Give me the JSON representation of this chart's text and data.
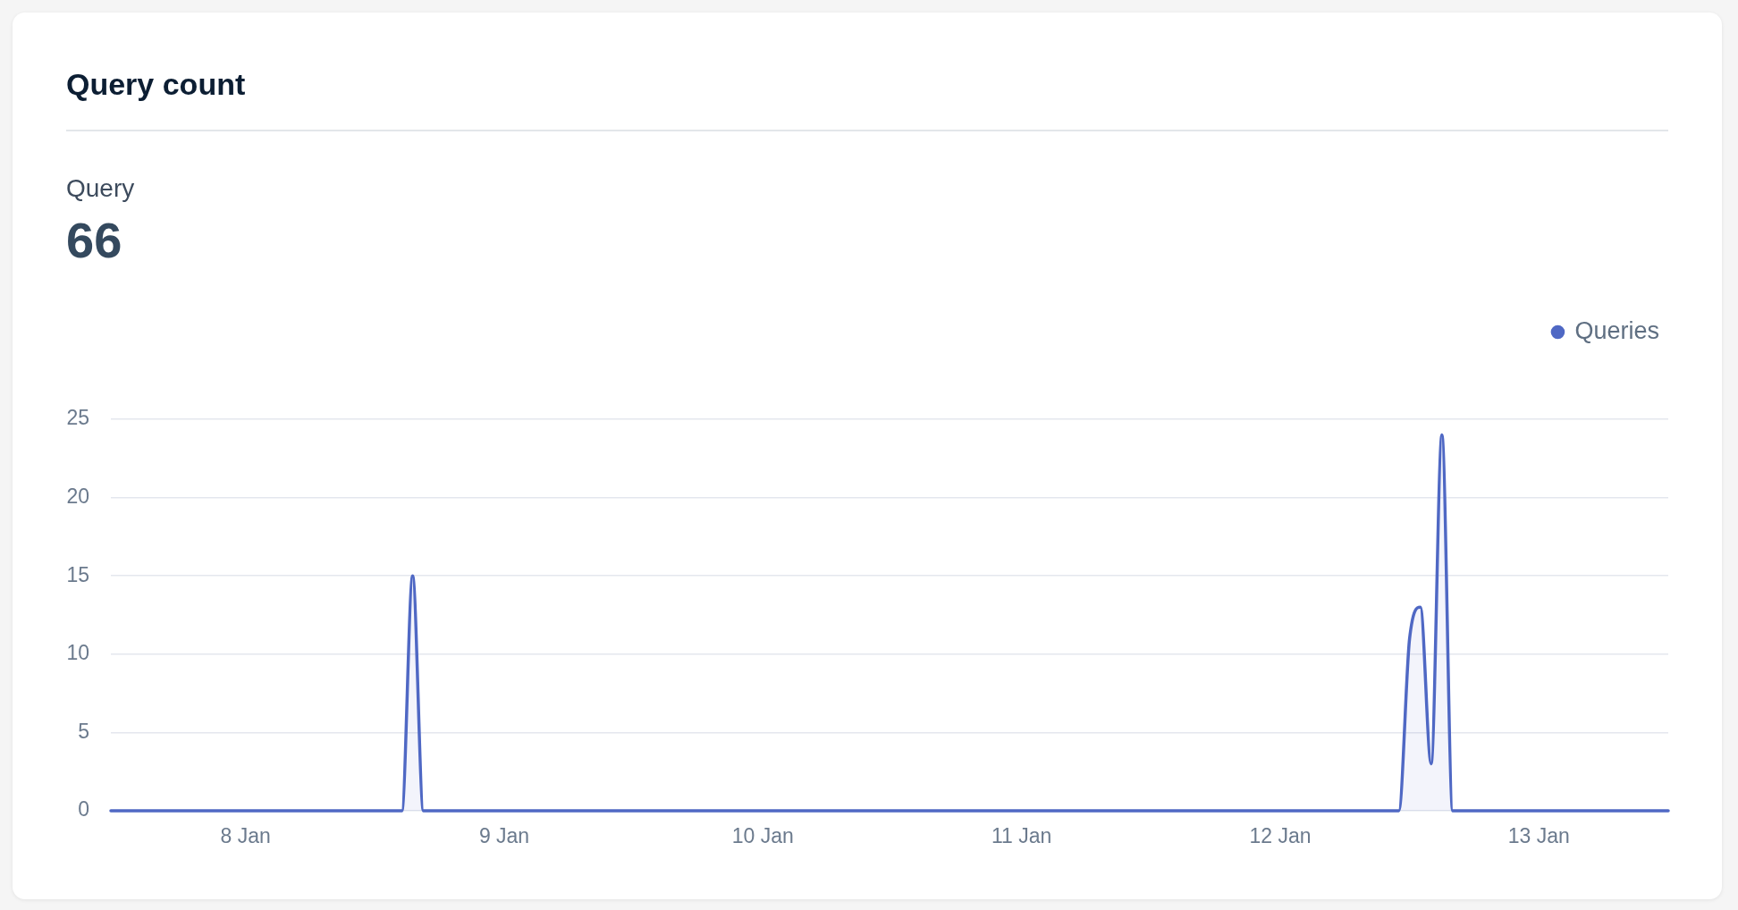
{
  "chart_data": {
    "type": "area",
    "title": "Query count",
    "subtitle": "Query",
    "annotations": [
      "66"
    ],
    "x": [
      "--01-07T11:30",
      "--01-08T14:30",
      "--01-08T15:30",
      "--01-08T16:30",
      "--01-12T11:00",
      "--01-12T12:00",
      "--01-12T13:00",
      "--01-12T14:00",
      "--01-12T15:00",
      "--01-12T16:00",
      "--01-13T12:00"
    ],
    "series": [
      {
        "name": "Queries",
        "color": "#4f68c4",
        "values": [
          0,
          0,
          15,
          0,
          0,
          11,
          13,
          3,
          24,
          0,
          0
        ]
      }
    ],
    "xlim": [
      "--01-07T11:30",
      "--01-13T12:00"
    ],
    "xticks": [
      {
        "value": "--01-08",
        "label": "8 Jan"
      },
      {
        "value": "--01-09",
        "label": "9 Jan"
      },
      {
        "value": "--01-10",
        "label": "10 Jan"
      },
      {
        "value": "--01-11",
        "label": "11 Jan"
      },
      {
        "value": "--01-12",
        "label": "12 Jan"
      },
      {
        "value": "--01-13",
        "label": "13 Jan"
      }
    ],
    "ylim": [
      0,
      25
    ],
    "yticks": [
      0,
      5,
      10,
      15,
      20,
      25
    ],
    "grid": "y",
    "legend": "top right",
    "marker": "none"
  }
}
